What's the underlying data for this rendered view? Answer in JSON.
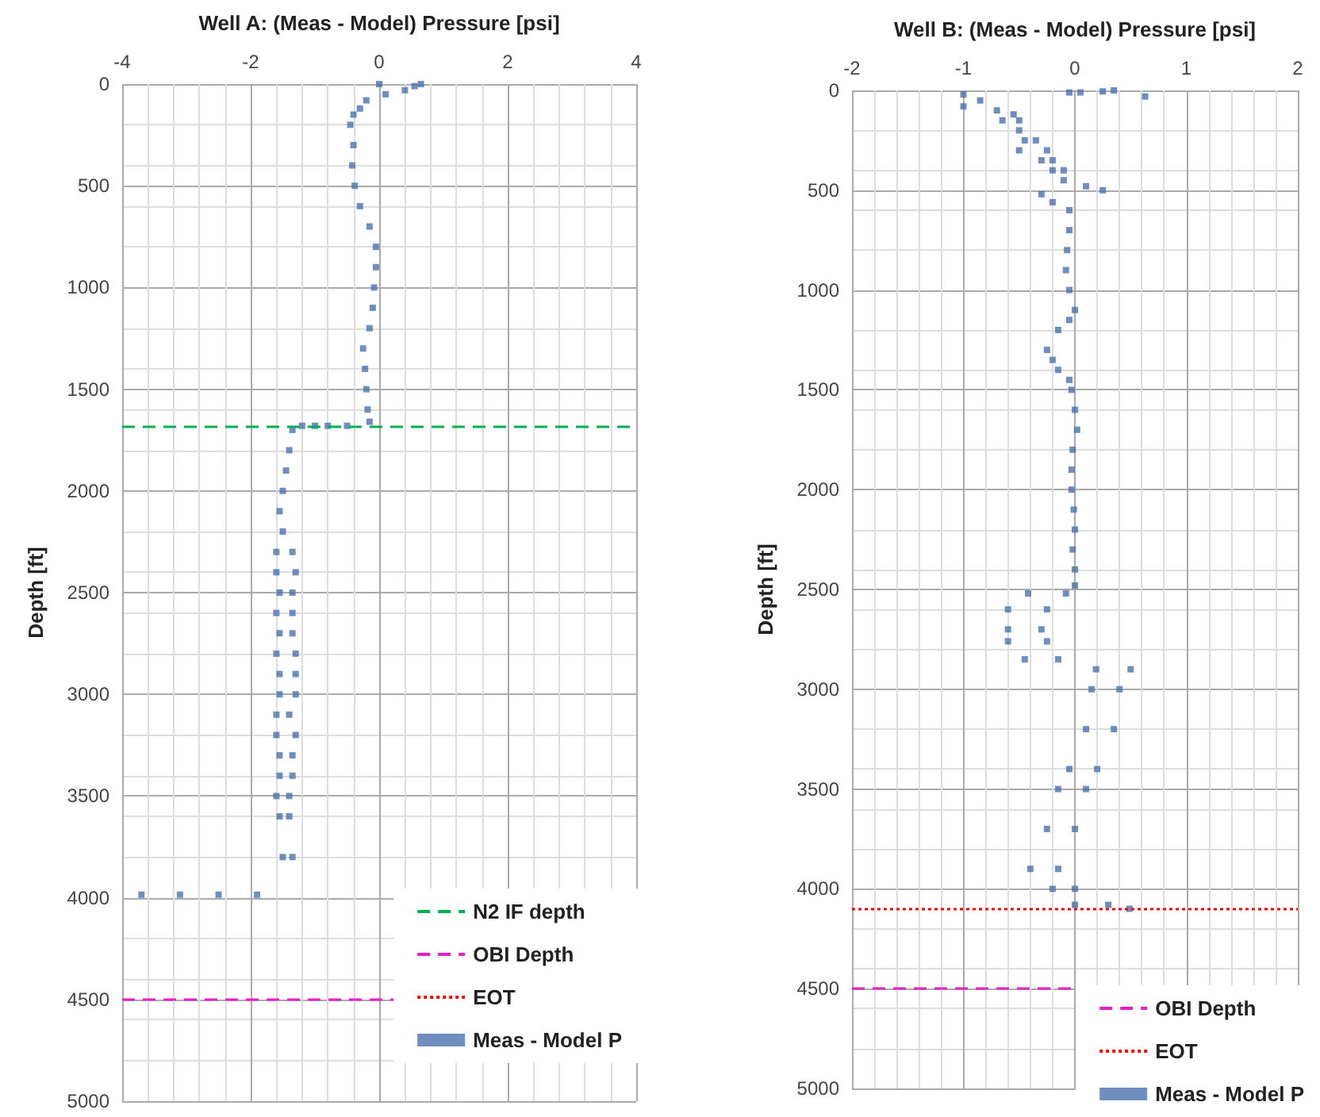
{
  "chart_data": [
    {
      "type": "scatter",
      "xlabel": "Well A: (Meas - Model) Pressure [psi]",
      "ylabel": "Depth [ft]",
      "xlim": [
        -4,
        4
      ],
      "xticks": [
        -4,
        -2,
        0,
        2,
        4
      ],
      "ylim": [
        5000,
        0
      ],
      "yticks": [
        0,
        500,
        1000,
        1500,
        2000,
        2500,
        3000,
        3500,
        4000,
        4500,
        5000
      ],
      "grid": true,
      "legend": "bottom right",
      "marker": "square",
      "ref_lines": [
        {
          "axis": "y",
          "value": 1680,
          "label": "N2 IF depth",
          "color": "#00b050",
          "line_style": "dashed"
        },
        {
          "axis": "y",
          "value": 4500,
          "label": "OBI Depth",
          "color": "#e81ec8",
          "line_style": "dashed"
        },
        {
          "axis": "y",
          "value": null,
          "label": "EOT",
          "color": "#ff0000",
          "line_style": "dotted"
        }
      ],
      "series": [
        {
          "name": "Meas - Model P",
          "color": "#4a72b0",
          "x": [
            0,
            0.65,
            0.55,
            0.4,
            0.1,
            -0.2,
            -0.3,
            -0.4,
            -0.45,
            -0.4,
            -0.42,
            -0.38,
            -0.3,
            -0.15,
            -0.05,
            -0.05,
            -0.08,
            -0.1,
            -0.15,
            -0.25,
            -0.22,
            -0.2,
            -0.18,
            -0.15,
            -0.5,
            -0.8,
            -1.0,
            -1.2,
            -1.35,
            -1.4,
            -1.45,
            -1.5,
            -1.55,
            -1.5,
            -1.6,
            -1.35,
            -1.6,
            -1.3,
            -1.55,
            -1.35,
            -1.6,
            -1.35,
            -1.55,
            -1.35,
            -1.6,
            -1.3,
            -1.55,
            -1.3,
            -1.55,
            -1.3,
            -1.6,
            -1.4,
            -1.6,
            -1.3,
            -1.55,
            -1.35,
            -1.55,
            -1.35,
            -1.6,
            -1.4,
            -1.55,
            -1.4,
            -1.5,
            -1.35,
            -3.7,
            -3.1,
            -2.5,
            -1.9
          ],
          "values": [
            0,
            0,
            10,
            30,
            50,
            80,
            120,
            150,
            200,
            300,
            400,
            500,
            600,
            700,
            800,
            900,
            1000,
            1100,
            1200,
            1300,
            1400,
            1500,
            1600,
            1660,
            1680,
            1680,
            1680,
            1680,
            1700,
            1800,
            1900,
            2000,
            2100,
            2200,
            2300,
            2300,
            2400,
            2400,
            2500,
            2500,
            2600,
            2600,
            2700,
            2700,
            2800,
            2800,
            2900,
            2900,
            3000,
            3000,
            3100,
            3100,
            3200,
            3200,
            3300,
            3300,
            3400,
            3400,
            3500,
            3500,
            3600,
            3600,
            3800,
            3800,
            3985,
            3985,
            3985,
            3985
          ]
        }
      ]
    },
    {
      "type": "scatter",
      "xlabel": "Well B: (Meas - Model) Pressure [psi]",
      "ylabel": "Depth [ft]",
      "xlim": [
        -2,
        2
      ],
      "xticks": [
        -2,
        -1,
        0,
        1,
        2
      ],
      "ylim": [
        5000,
        0
      ],
      "yticks": [
        0,
        500,
        1000,
        1500,
        2000,
        2500,
        3000,
        3500,
        4000,
        4500,
        5000
      ],
      "grid": true,
      "legend": "bottom right",
      "marker": "square",
      "ref_lines": [
        {
          "axis": "y",
          "value": 4500,
          "label": "OBI Depth",
          "color": "#e81ec8",
          "line_style": "dashed"
        },
        {
          "axis": "y",
          "value": 4100,
          "label": "EOT",
          "color": "#ff0000",
          "line_style": "dotted"
        }
      ],
      "series": [
        {
          "name": "Meas - Model P",
          "color": "#4a72b0",
          "x": [
            -1.0,
            -0.05,
            0.05,
            0.25,
            0.35,
            0.63,
            -1.0,
            -0.85,
            -0.7,
            -0.55,
            -0.65,
            -0.5,
            -0.5,
            -0.35,
            -0.45,
            -0.25,
            -0.5,
            -0.2,
            -0.3,
            -0.1,
            -0.2,
            -0.1,
            0.1,
            0.25,
            -0.3,
            -0.2,
            -0.05,
            -0.05,
            -0.07,
            -0.08,
            -0.05,
            0.0,
            -0.05,
            -0.15,
            -0.25,
            -0.2,
            -0.15,
            -0.05,
            -0.03,
            0.0,
            0.02,
            -0.02,
            -0.03,
            -0.03,
            -0.01,
            0.0,
            -0.02,
            0.0,
            0.0,
            -0.42,
            -0.08,
            -0.6,
            -0.25,
            -0.6,
            -0.3,
            -0.6,
            -0.25,
            -0.45,
            -0.15,
            0.19,
            0.5,
            0.15,
            0.4,
            0.1,
            0.35,
            -0.05,
            0.2,
            -0.15,
            0.1,
            -0.25,
            0.0,
            -0.4,
            -0.15,
            -0.2,
            0.0,
            0.0,
            0.3,
            0.49
          ],
          "values": [
            20,
            10,
            10,
            5,
            0,
            30,
            80,
            50,
            100,
            120,
            150,
            150,
            200,
            250,
            250,
            300,
            300,
            350,
            350,
            400,
            400,
            450,
            480,
            500,
            520,
            560,
            600,
            700,
            800,
            900,
            1000,
            1100,
            1150,
            1200,
            1300,
            1350,
            1400,
            1450,
            1500,
            1600,
            1700,
            1800,
            1900,
            2000,
            2100,
            2200,
            2300,
            2400,
            2480,
            2520,
            2520,
            2600,
            2600,
            2700,
            2700,
            2760,
            2760,
            2850,
            2850,
            2900,
            2900,
            3000,
            3000,
            3200,
            3200,
            3400,
            3400,
            3500,
            3500,
            3700,
            3700,
            3900,
            3900,
            4000,
            4000,
            4080,
            4080,
            4100
          ]
        }
      ]
    }
  ]
}
